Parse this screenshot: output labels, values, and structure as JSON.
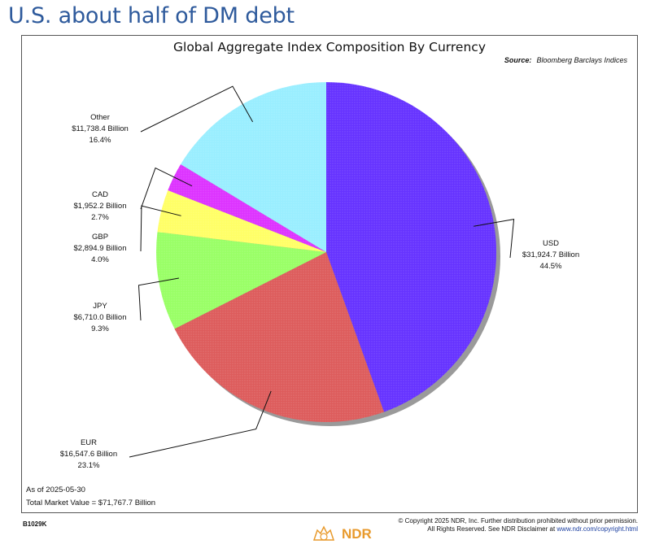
{
  "headline": "U.S. about half of DM debt",
  "footer": {
    "code": "B1029K",
    "copyright_line1": "© Copyright 2025 NDR, Inc. Further distribution prohibited without prior permission.",
    "copyright_line2_prefix": "All Rights Reserved. See NDR Disclaimer at",
    "copyright_link": "www.ndr.com/copyright.html",
    "logo_text": "NDR"
  },
  "chart_data": {
    "type": "pie",
    "title": "Global Aggregate Index Composition By Currency",
    "source_label": "Source:",
    "source": "Bloomberg Barclays Indices",
    "as_of": "As of 2025-05-30",
    "total": "Total Market Value = $71,767.7 Billion",
    "start_angle": "12 o'clock",
    "direction": "clockwise",
    "slices": [
      {
        "name": "USD",
        "value": 31924.7,
        "value_label": "$31,924.7 Billion",
        "pct_label": "44.5%",
        "color": "#6633ff"
      },
      {
        "name": "EUR",
        "value": 16547.6,
        "value_label": "$16,547.6 Billion",
        "pct_label": "23.1%",
        "color": "#dd5c5c"
      },
      {
        "name": "JPY",
        "value": 6710.0,
        "value_label": "$6,710.0 Billion",
        "pct_label": "9.3%",
        "color": "#99ff66"
      },
      {
        "name": "GBP",
        "value": 2894.9,
        "value_label": "$2,894.9 Billion",
        "pct_label": "4.0%",
        "color": "#ffff66"
      },
      {
        "name": "CAD",
        "value": 1952.2,
        "value_label": "$1,952.2 Billion",
        "pct_label": "2.7%",
        "color": "#dd33ff"
      },
      {
        "name": "Other",
        "value": 11738.4,
        "value_label": "$11,738.4 Billion",
        "pct_label": "16.4%",
        "color": "#99eeff"
      }
    ]
  }
}
